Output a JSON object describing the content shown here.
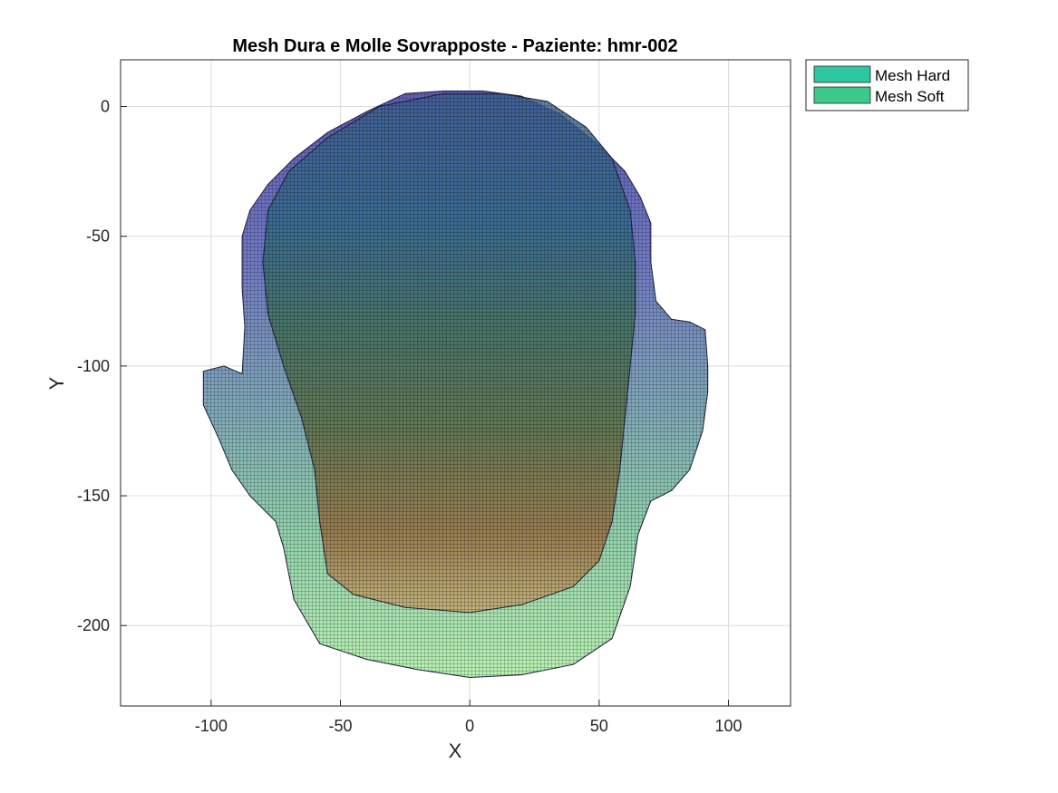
{
  "chart_data": {
    "type": "surface",
    "title": "Mesh Dura e Molle Sovrapposte - Paziente: hmr-002",
    "xlabel": "X",
    "ylabel": "Y",
    "xlim": [
      -135,
      124
    ],
    "ylim": [
      -231,
      18
    ],
    "xticks": [
      -100,
      -50,
      0,
      50,
      100
    ],
    "yticks": [
      0,
      -50,
      -100,
      -150,
      -200
    ],
    "xtick_labels": [
      "-100",
      "-50",
      "0",
      "50",
      "100"
    ],
    "ytick_labels": [
      "0",
      "-50",
      "-100",
      "-150",
      "-200"
    ],
    "grid": true,
    "legend_position": "outside-top-right",
    "series": [
      {
        "name": "Mesh Hard",
        "color": "#2cc6a0",
        "outline": [
          [
            -10,
            5
          ],
          [
            12,
            5
          ],
          [
            30,
            2
          ],
          [
            45,
            -8
          ],
          [
            55,
            -20
          ],
          [
            62,
            -40
          ],
          [
            64,
            -60
          ],
          [
            64,
            -80
          ],
          [
            62,
            -100
          ],
          [
            60,
            -120
          ],
          [
            58,
            -140
          ],
          [
            55,
            -160
          ],
          [
            50,
            -175
          ],
          [
            40,
            -185
          ],
          [
            20,
            -192
          ],
          [
            0,
            -195
          ],
          [
            -25,
            -193
          ],
          [
            -45,
            -188
          ],
          [
            -55,
            -180
          ],
          [
            -58,
            -160
          ],
          [
            -60,
            -140
          ],
          [
            -65,
            -120
          ],
          [
            -72,
            -100
          ],
          [
            -78,
            -80
          ],
          [
            -80,
            -60
          ],
          [
            -78,
            -40
          ],
          [
            -70,
            -25
          ],
          [
            -55,
            -12
          ],
          [
            -35,
            0
          ]
        ]
      },
      {
        "name": "Mesh Soft",
        "color": "#3cc98a",
        "outline": [
          [
            -10,
            6
          ],
          [
            5,
            6
          ],
          [
            20,
            4
          ],
          [
            35,
            -3
          ],
          [
            50,
            -15
          ],
          [
            60,
            -25
          ],
          [
            66,
            -35
          ],
          [
            70,
            -45
          ],
          [
            70,
            -60
          ],
          [
            72,
            -75
          ],
          [
            78,
            -82
          ],
          [
            85,
            -83
          ],
          [
            91,
            -86
          ],
          [
            92,
            -100
          ],
          [
            92,
            -110
          ],
          [
            90,
            -125
          ],
          [
            85,
            -140
          ],
          [
            78,
            -148
          ],
          [
            70,
            -152
          ],
          [
            65,
            -165
          ],
          [
            62,
            -185
          ],
          [
            55,
            -205
          ],
          [
            40,
            -215
          ],
          [
            20,
            -219
          ],
          [
            0,
            -220
          ],
          [
            -20,
            -217
          ],
          [
            -40,
            -213
          ],
          [
            -58,
            -207
          ],
          [
            -68,
            -190
          ],
          [
            -72,
            -170
          ],
          [
            -75,
            -160
          ],
          [
            -85,
            -150
          ],
          [
            -92,
            -140
          ],
          [
            -97,
            -128
          ],
          [
            -103,
            -115
          ],
          [
            -103,
            -102
          ],
          [
            -95,
            -100
          ],
          [
            -88,
            -103
          ],
          [
            -87,
            -85
          ],
          [
            -88,
            -70
          ],
          [
            -88,
            -50
          ],
          [
            -85,
            -40
          ],
          [
            -78,
            -30
          ],
          [
            -68,
            -20
          ],
          [
            -55,
            -10
          ],
          [
            -40,
            -2
          ],
          [
            -25,
            5
          ]
        ]
      }
    ]
  }
}
